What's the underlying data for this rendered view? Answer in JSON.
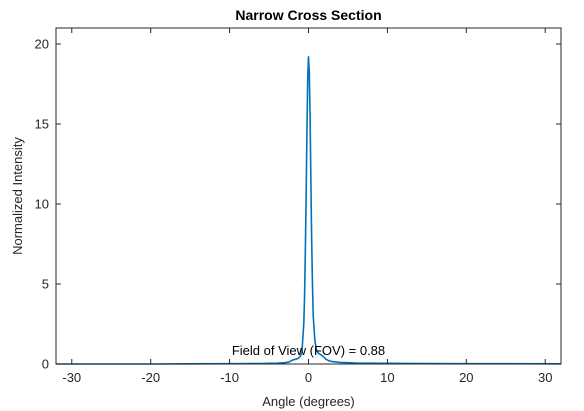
{
  "chart_data": {
    "type": "line",
    "title": "Narrow Cross Section",
    "xlabel": "Angle (degrees)",
    "ylabel": "Normalized Intensity",
    "xlim": [
      -32,
      32
    ],
    "ylim": [
      0,
      21
    ],
    "xticks": [
      -30,
      -20,
      -10,
      0,
      10,
      20,
      30
    ],
    "yticks": [
      0,
      5,
      10,
      15,
      20
    ],
    "grid": false,
    "box": true,
    "line_color": "#0072BD",
    "annotation": {
      "text": "Field of View (FOV) = 0.88",
      "x": 0.0,
      "y": 0.55
    },
    "series": [
      {
        "x": [
          -32,
          -25,
          -20,
          -15,
          -10,
          -6,
          -4,
          -3,
          -2.5,
          -2,
          -1.6,
          -1.3,
          -1.0,
          -0.8,
          -0.6,
          -0.5,
          -0.4,
          -0.3,
          -0.2,
          -0.1,
          0,
          0.1,
          0.2,
          0.3,
          0.4,
          0.5,
          0.6,
          0.8,
          1.0,
          1.2,
          1.5,
          1.8,
          2.2,
          2.6,
          3.0,
          4,
          5,
          6,
          8,
          10,
          15,
          20,
          25,
          32
        ],
        "y": [
          0.0,
          0.0,
          0.0,
          0.01,
          0.02,
          0.03,
          0.05,
          0.08,
          0.12,
          0.25,
          0.3,
          0.35,
          0.5,
          1.0,
          2.5,
          4.2,
          7.0,
          10.5,
          14.5,
          17.8,
          19.2,
          18.2,
          15.5,
          11.5,
          7.8,
          5.0,
          3.0,
          1.5,
          0.9,
          0.7,
          0.6,
          0.5,
          0.3,
          0.2,
          0.15,
          0.1,
          0.08,
          0.06,
          0.05,
          0.04,
          0.03,
          0.02,
          0.02,
          0.01
        ]
      }
    ]
  }
}
